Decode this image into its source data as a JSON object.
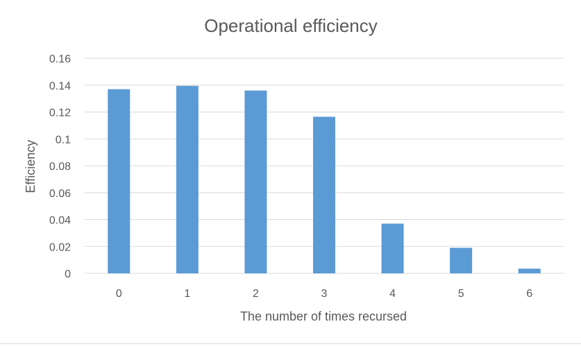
{
  "chart_data": {
    "type": "bar",
    "title": "Operational efficiency",
    "xlabel": "The number of times recursed",
    "ylabel": "Efficiency",
    "categories": [
      "0",
      "1",
      "2",
      "3",
      "4",
      "5",
      "6"
    ],
    "values": [
      0.137,
      0.1395,
      0.136,
      0.1165,
      0.037,
      0.019,
      0.0035
    ],
    "ylim": [
      0,
      0.16
    ],
    "yticks": [
      0,
      0.02,
      0.04,
      0.06,
      0.08,
      0.1,
      0.12,
      0.14,
      0.16
    ],
    "ytick_labels": [
      "0",
      "0.02",
      "0.04",
      "0.06",
      "0.08",
      "0.1",
      "0.12",
      "0.14",
      "0.16"
    ],
    "grid": true,
    "legend": "none",
    "bar_color": "#5B9BD5",
    "grid_color": "#d9d9d9",
    "text_color": "#595959"
  }
}
